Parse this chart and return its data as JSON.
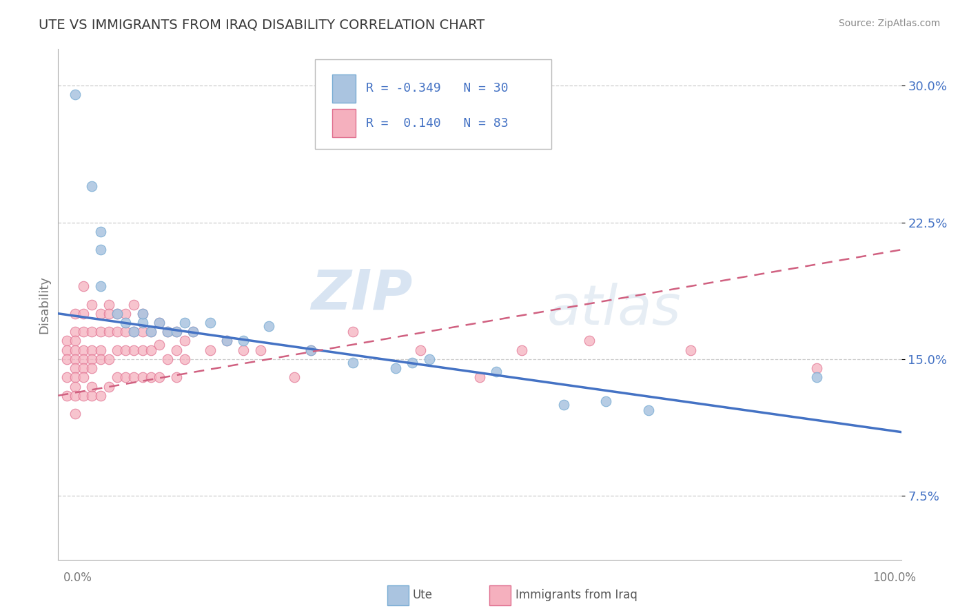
{
  "title": "UTE VS IMMIGRANTS FROM IRAQ DISABILITY CORRELATION CHART",
  "source": "Source: ZipAtlas.com",
  "ylabel": "Disability",
  "background_color": "#ffffff",
  "ute_color": "#aac4e0",
  "ute_edge_color": "#7aadd4",
  "iraq_color": "#f5b0be",
  "iraq_edge_color": "#e07090",
  "ute_R": -0.349,
  "ute_N": 30,
  "iraq_R": 0.14,
  "iraq_N": 83,
  "ute_line_color": "#4472c4",
  "iraq_line_color": "#d06080",
  "legend_text_color": "#4472c4",
  "watermark_color": "#c8d8e8",
  "grid_color": "#cccccc",
  "ytick_color": "#4472c4",
  "ute_x": [
    0.02,
    0.04,
    0.05,
    0.05,
    0.05,
    0.07,
    0.08,
    0.09,
    0.1,
    0.1,
    0.11,
    0.12,
    0.13,
    0.14,
    0.15,
    0.16,
    0.18,
    0.2,
    0.22,
    0.25,
    0.3,
    0.35,
    0.4,
    0.42,
    0.44,
    0.52,
    0.6,
    0.65,
    0.7,
    0.9
  ],
  "ute_y": [
    0.295,
    0.245,
    0.22,
    0.21,
    0.19,
    0.175,
    0.17,
    0.165,
    0.17,
    0.175,
    0.165,
    0.17,
    0.165,
    0.165,
    0.17,
    0.165,
    0.17,
    0.16,
    0.16,
    0.168,
    0.155,
    0.148,
    0.145,
    0.148,
    0.15,
    0.143,
    0.125,
    0.127,
    0.122,
    0.14
  ],
  "iraq_x": [
    0.01,
    0.01,
    0.01,
    0.01,
    0.01,
    0.02,
    0.02,
    0.02,
    0.02,
    0.02,
    0.02,
    0.02,
    0.02,
    0.02,
    0.02,
    0.03,
    0.03,
    0.03,
    0.03,
    0.03,
    0.03,
    0.03,
    0.03,
    0.04,
    0.04,
    0.04,
    0.04,
    0.04,
    0.04,
    0.04,
    0.05,
    0.05,
    0.05,
    0.05,
    0.05,
    0.06,
    0.06,
    0.06,
    0.06,
    0.06,
    0.07,
    0.07,
    0.07,
    0.07,
    0.08,
    0.08,
    0.08,
    0.08,
    0.09,
    0.09,
    0.09,
    0.09,
    0.1,
    0.1,
    0.1,
    0.1,
    0.11,
    0.11,
    0.11,
    0.12,
    0.12,
    0.12,
    0.13,
    0.13,
    0.14,
    0.14,
    0.14,
    0.15,
    0.15,
    0.16,
    0.18,
    0.2,
    0.22,
    0.24,
    0.28,
    0.3,
    0.35,
    0.43,
    0.5,
    0.55,
    0.63,
    0.75,
    0.9
  ],
  "iraq_y": [
    0.16,
    0.155,
    0.15,
    0.14,
    0.13,
    0.175,
    0.165,
    0.16,
    0.155,
    0.15,
    0.145,
    0.14,
    0.135,
    0.13,
    0.12,
    0.19,
    0.175,
    0.165,
    0.155,
    0.15,
    0.145,
    0.14,
    0.13,
    0.18,
    0.165,
    0.155,
    0.15,
    0.145,
    0.135,
    0.13,
    0.175,
    0.165,
    0.155,
    0.15,
    0.13,
    0.18,
    0.175,
    0.165,
    0.15,
    0.135,
    0.175,
    0.165,
    0.155,
    0.14,
    0.175,
    0.165,
    0.155,
    0.14,
    0.18,
    0.165,
    0.155,
    0.14,
    0.175,
    0.165,
    0.155,
    0.14,
    0.165,
    0.155,
    0.14,
    0.17,
    0.158,
    0.14,
    0.165,
    0.15,
    0.165,
    0.155,
    0.14,
    0.16,
    0.15,
    0.165,
    0.155,
    0.16,
    0.155,
    0.155,
    0.14,
    0.155,
    0.165,
    0.155,
    0.14,
    0.155,
    0.16,
    0.155,
    0.145
  ],
  "xlim": [
    0.0,
    1.0
  ],
  "ylim": [
    0.04,
    0.32
  ],
  "ytick_vals": [
    0.075,
    0.15,
    0.225,
    0.3
  ],
  "ytick_labels": [
    "7.5%",
    "15.0%",
    "22.5%",
    "30.0%"
  ]
}
